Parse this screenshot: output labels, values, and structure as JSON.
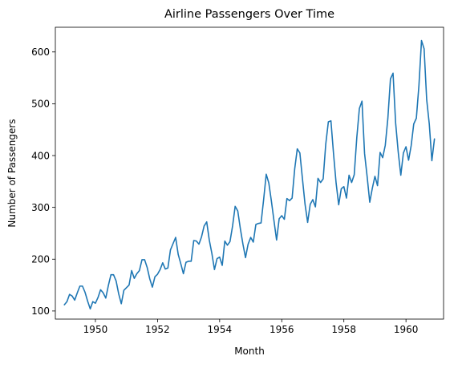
{
  "chart_data": {
    "type": "line",
    "title": "Airline Passengers Over Time",
    "xlabel": "Month",
    "ylabel": "Number of Passengers",
    "xlim": [
      1948.71,
      1961.21
    ],
    "ylim": [
      84.35,
      647.65
    ],
    "grid": false,
    "x_ticks": [
      {
        "value": 1950,
        "label": "1950"
      },
      {
        "value": 1952,
        "label": "1952"
      },
      {
        "value": 1954,
        "label": "1954"
      },
      {
        "value": 1956,
        "label": "1956"
      },
      {
        "value": 1958,
        "label": "1958"
      },
      {
        "value": 1960,
        "label": "1960"
      }
    ],
    "y_ticks": [
      {
        "value": 100,
        "label": "100"
      },
      {
        "value": 200,
        "label": "200"
      },
      {
        "value": 300,
        "label": "300"
      },
      {
        "value": 400,
        "label": "400"
      },
      {
        "value": 500,
        "label": "500"
      },
      {
        "value": 600,
        "label": "600"
      }
    ],
    "series": [
      {
        "color": "#1f77b4",
        "x_start": "1949-01",
        "x_step": "1 month",
        "values": [
          112,
          118,
          132,
          129,
          121,
          135,
          148,
          148,
          136,
          119,
          104,
          118,
          115,
          126,
          141,
          135,
          125,
          149,
          170,
          170,
          158,
          133,
          114,
          140,
          145,
          150,
          178,
          163,
          172,
          178,
          199,
          199,
          184,
          162,
          146,
          166,
          171,
          180,
          193,
          181,
          183,
          218,
          230,
          242,
          209,
          191,
          172,
          194,
          196,
          196,
          236,
          235,
          229,
          243,
          264,
          272,
          237,
          211,
          180,
          201,
          204,
          188,
          235,
          227,
          234,
          264,
          302,
          293,
          259,
          229,
          203,
          229,
          242,
          233,
          267,
          269,
          270,
          315,
          364,
          347,
          312,
          274,
          237,
          278,
          284,
          277,
          317,
          313,
          318,
          374,
          413,
          405,
          355,
          306,
          271,
          306,
          315,
          301,
          356,
          348,
          355,
          422,
          465,
          467,
          404,
          347,
          305,
          336,
          340,
          318,
          362,
          348,
          363,
          435,
          491,
          505,
          404,
          359,
          310,
          337,
          360,
          342,
          406,
          396,
          420,
          472,
          548,
          559,
          463,
          407,
          362,
          405,
          417,
          391,
          419,
          461,
          472,
          535,
          622,
          606,
          508,
          461,
          390,
          432
        ]
      }
    ]
  }
}
